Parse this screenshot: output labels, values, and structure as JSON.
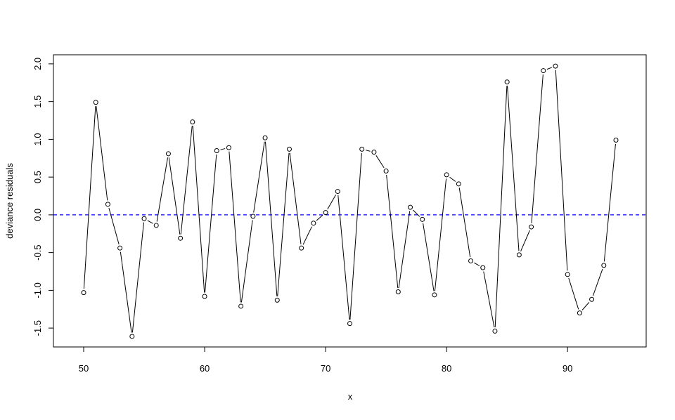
{
  "chart_data": {
    "type": "line",
    "title": "",
    "xlabel": "x",
    "ylabel": "deviance residuals",
    "xlim": [
      47.5,
      96.5
    ],
    "ylim": [
      -1.75,
      2.12
    ],
    "x_ticks": [
      50,
      60,
      70,
      80,
      90
    ],
    "y_ticks": [
      -1.5,
      -1.0,
      -0.5,
      0.0,
      0.5,
      1.0,
      1.5,
      2.0
    ],
    "x_tick_labels": [
      "50",
      "60",
      "70",
      "80",
      "90"
    ],
    "y_tick_labels": [
      "-1.5",
      "-1.0",
      "-0.5",
      "0.0",
      "0.5",
      "1.0",
      "1.5",
      "2.0"
    ],
    "grid": false,
    "reference_line": {
      "y": 0,
      "color": "#0000ff",
      "style": "dashed"
    },
    "series": [
      {
        "color": "#000000",
        "marker": "open-circle",
        "x": [
          50,
          51,
          52,
          53,
          54,
          55,
          56,
          57,
          58,
          59,
          60,
          61,
          62,
          63,
          64,
          65,
          66,
          67,
          68,
          69,
          70,
          71,
          72,
          73,
          74,
          75,
          76,
          77,
          78,
          79,
          80,
          81,
          82,
          83,
          84,
          85,
          86,
          87,
          88,
          89,
          90,
          91,
          92,
          93,
          94
        ],
        "y": [
          -1.03,
          1.49,
          0.14,
          -0.44,
          -1.61,
          -0.05,
          -0.14,
          0.81,
          -0.31,
          1.23,
          -1.08,
          0.85,
          0.89,
          -1.21,
          -0.02,
          1.02,
          -1.13,
          0.87,
          -0.44,
          -0.11,
          0.03,
          0.31,
          -1.44,
          0.87,
          0.83,
          0.58,
          -1.02,
          0.1,
          -0.06,
          -1.06,
          0.53,
          0.41,
          -0.61,
          -0.7,
          -1.54,
          1.76,
          -0.53,
          -0.16,
          1.91,
          1.97,
          -0.79,
          -1.3,
          -1.12,
          -0.67,
          0.99
        ]
      }
    ]
  }
}
